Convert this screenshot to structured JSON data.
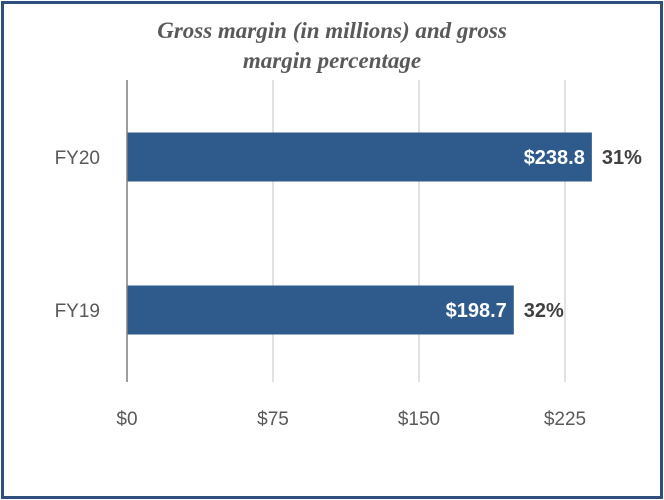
{
  "chart_data": {
    "type": "bar",
    "orientation": "horizontal",
    "title_lines": [
      "Gross margin (in millions) and gross",
      "margin percentage"
    ],
    "categories": [
      "FY20",
      "FY19"
    ],
    "values": [
      238.8,
      198.7
    ],
    "value_labels": [
      "$238.8",
      "$198.7"
    ],
    "percent_labels": [
      "31%",
      "32%"
    ],
    "xlim": [
      0,
      225
    ],
    "x_ticks": [
      0,
      75,
      150,
      225
    ],
    "x_tick_labels": [
      "$0",
      "$75",
      "$150",
      "$225"
    ],
    "grid": "vertical",
    "legend": "none",
    "bar_color": "#2E5A8C",
    "frame_color": "#2E4F7C"
  }
}
